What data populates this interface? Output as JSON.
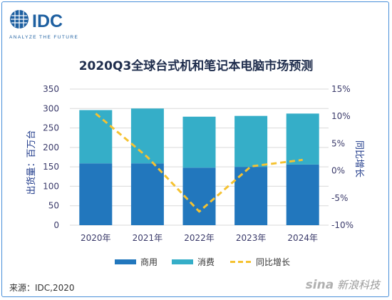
{
  "logo": {
    "text": "IDC",
    "tagline": "ANALYZE THE FUTURE",
    "color": "#1d5fa0"
  },
  "source": "来源：IDC,2020",
  "watermark": {
    "brand": "sina",
    "name": "新浪科技"
  },
  "chart_data": {
    "type": "bar",
    "title": "2020Q3全球台式机和笔记本电脑市场预测",
    "categories": [
      "2020年",
      "2021年",
      "2022年",
      "2023年",
      "2024年"
    ],
    "ylabel": "出货量：百万台",
    "y2label": "同比增长",
    "ylim": [
      0,
      350
    ],
    "yticks": [
      0,
      50,
      100,
      150,
      200,
      250,
      300,
      350
    ],
    "y2lim": [
      -10,
      15
    ],
    "y2ticks": [
      "-10%",
      "-5%",
      "0%",
      "5%",
      "10%",
      "15%"
    ],
    "y2tickvalues": [
      -10,
      -5,
      0,
      5,
      10,
      15
    ],
    "stacked": true,
    "series": [
      {
        "name": "商用",
        "values": [
          159,
          159,
          148,
          150,
          156
        ],
        "color": "#2277bd",
        "kind": "bar"
      },
      {
        "name": "消费",
        "values": [
          137,
          141,
          131,
          131,
          131
        ],
        "color": "#35aec8",
        "kind": "bar"
      },
      {
        "name": "同比增长",
        "values": [
          10.5,
          2.5,
          -7.5,
          0.8,
          2.0
        ],
        "color": "#f5c231",
        "kind": "line",
        "axis": "right",
        "dash": true
      }
    ],
    "grid": true,
    "legend": "bottom"
  }
}
